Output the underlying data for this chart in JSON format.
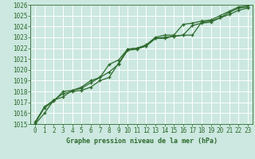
{
  "title": "Graphe pression niveau de la mer (hPa)",
  "xlim": [
    -0.5,
    23.5
  ],
  "ylim": [
    1015,
    1026
  ],
  "xticks": [
    0,
    1,
    2,
    3,
    4,
    5,
    6,
    7,
    8,
    9,
    10,
    11,
    12,
    13,
    14,
    15,
    16,
    17,
    18,
    19,
    20,
    21,
    22,
    23
  ],
  "yticks": [
    1015,
    1016,
    1017,
    1018,
    1019,
    1020,
    1021,
    1022,
    1023,
    1024,
    1025,
    1026
  ],
  "background_color": "#cce8e0",
  "grid_color": "#ffffff",
  "line_color": "#2d6a2d",
  "line1": [
    1015.0,
    1016.0,
    1017.2,
    1017.5,
    1018.1,
    1018.3,
    1018.8,
    1019.3,
    1019.8,
    1020.5,
    1021.8,
    1021.9,
    1022.2,
    1022.9,
    1022.9,
    1023.1,
    1023.2,
    1024.1,
    1024.3,
    1024.4,
    1024.8,
    1025.3,
    1025.7,
    1025.8
  ],
  "line2": [
    1015.1,
    1016.5,
    1017.1,
    1018.0,
    1018.1,
    1018.4,
    1019.0,
    1019.3,
    1020.5,
    1020.9,
    1021.9,
    1022.0,
    1022.2,
    1022.9,
    1023.0,
    1023.1,
    1023.2,
    1023.2,
    1024.4,
    1024.5,
    1024.8,
    1025.1,
    1025.5,
    1025.7
  ],
  "line3": [
    1015.2,
    1016.6,
    1017.2,
    1017.8,
    1018.0,
    1018.1,
    1018.4,
    1019.0,
    1019.3,
    1020.6,
    1021.9,
    1022.0,
    1022.3,
    1023.0,
    1023.2,
    1023.2,
    1024.2,
    1024.3,
    1024.5,
    1024.6,
    1025.0,
    1025.4,
    1025.8,
    1025.9
  ]
}
